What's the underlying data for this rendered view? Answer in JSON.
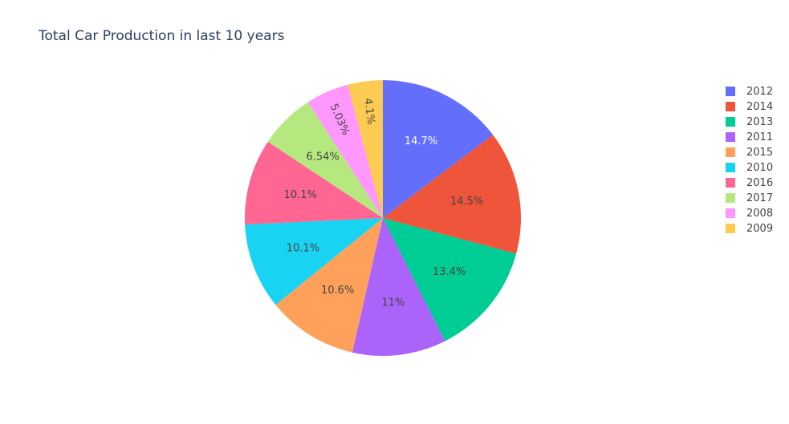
{
  "chart_data": {
    "type": "pie",
    "title": "Total Car Production in last 10 years",
    "sort": "descending",
    "direction": "clockwise",
    "start_angle": "12 o'clock",
    "legend_position": "right",
    "slices": [
      {
        "label": "2012",
        "percent": 14.7,
        "text": "14.7%",
        "color": "#636efa",
        "text_color": "#ffffff"
      },
      {
        "label": "2014",
        "percent": 14.5,
        "text": "14.5%",
        "color": "#ef553b",
        "text_color": "#444444"
      },
      {
        "label": "2013",
        "percent": 13.4,
        "text": "13.4%",
        "color": "#00cc96",
        "text_color": "#444444"
      },
      {
        "label": "2011",
        "percent": 11,
        "text": "11%",
        "color": "#ab63fa",
        "text_color": "#444444"
      },
      {
        "label": "2015",
        "percent": 10.6,
        "text": "10.6%",
        "color": "#ffa15a",
        "text_color": "#444444"
      },
      {
        "label": "2010",
        "percent": 10.1,
        "text": "10.1%",
        "color": "#19d3f3",
        "text_color": "#444444"
      },
      {
        "label": "2016",
        "percent": 10.1,
        "text": "10.1%",
        "color": "#ff6692",
        "text_color": "#444444"
      },
      {
        "label": "2017",
        "percent": 6.54,
        "text": "6.54%",
        "color": "#b6e880",
        "text_color": "#444444"
      },
      {
        "label": "2008",
        "percent": 5.03,
        "text": "5.03%",
        "color": "#ff97ff",
        "text_color": "#444444"
      },
      {
        "label": "2009",
        "percent": 4.1,
        "text": "4.1%",
        "color": "#fecb52",
        "text_color": "#444444"
      }
    ]
  }
}
